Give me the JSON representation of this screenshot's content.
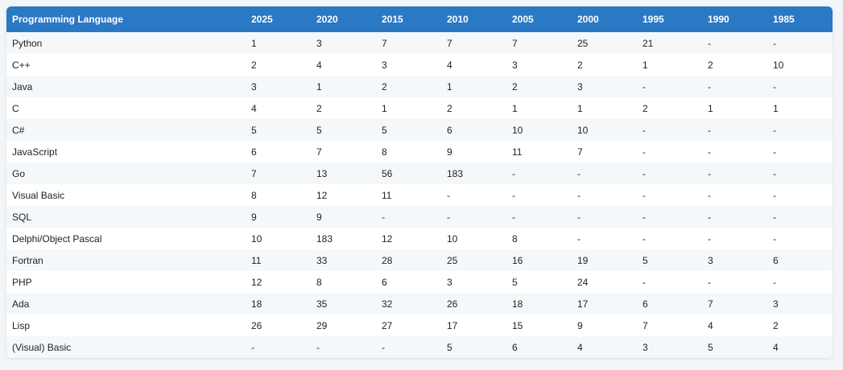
{
  "table": {
    "columns": [
      "Programming Language",
      "2025",
      "2020",
      "2015",
      "2010",
      "2005",
      "2000",
      "1995",
      "1990",
      "1985"
    ],
    "rows": [
      [
        "Python",
        "1",
        "3",
        "7",
        "7",
        "7",
        "25",
        "21",
        "-",
        "-"
      ],
      [
        "C++",
        "2",
        "4",
        "3",
        "4",
        "3",
        "2",
        "1",
        "2",
        "10"
      ],
      [
        "Java",
        "3",
        "1",
        "2",
        "1",
        "2",
        "3",
        "-",
        "-",
        "-"
      ],
      [
        "C",
        "4",
        "2",
        "1",
        "2",
        "1",
        "1",
        "2",
        "1",
        "1"
      ],
      [
        "C#",
        "5",
        "5",
        "5",
        "6",
        "10",
        "10",
        "-",
        "-",
        "-"
      ],
      [
        "JavaScript",
        "6",
        "7",
        "8",
        "9",
        "11",
        "7",
        "-",
        "-",
        "-"
      ],
      [
        "Go",
        "7",
        "13",
        "56",
        "183",
        "-",
        "-",
        "-",
        "-",
        "-"
      ],
      [
        "Visual Basic",
        "8",
        "12",
        "11",
        "-",
        "-",
        "-",
        "-",
        "-",
        "-"
      ],
      [
        "SQL",
        "9",
        "9",
        "-",
        "-",
        "-",
        "-",
        "-",
        "-",
        "-"
      ],
      [
        "Delphi/Object Pascal",
        "10",
        "183",
        "12",
        "10",
        "8",
        "-",
        "-",
        "-",
        "-"
      ],
      [
        "Fortran",
        "11",
        "33",
        "28",
        "25",
        "16",
        "19",
        "5",
        "3",
        "6"
      ],
      [
        "PHP",
        "12",
        "8",
        "6",
        "3",
        "5",
        "24",
        "-",
        "-",
        "-"
      ],
      [
        "Ada",
        "18",
        "35",
        "32",
        "26",
        "18",
        "17",
        "6",
        "7",
        "3"
      ],
      [
        "Lisp",
        "26",
        "29",
        "27",
        "17",
        "15",
        "9",
        "7",
        "4",
        "2"
      ],
      [
        "(Visual) Basic",
        "-",
        "-",
        "-",
        "5",
        "6",
        "4",
        "3",
        "5",
        "4"
      ]
    ]
  },
  "colors": {
    "header_bg": "#2b78c4",
    "header_text": "#ffffff",
    "row_odd": "#f4f8fb",
    "row_even": "#ffffff"
  }
}
